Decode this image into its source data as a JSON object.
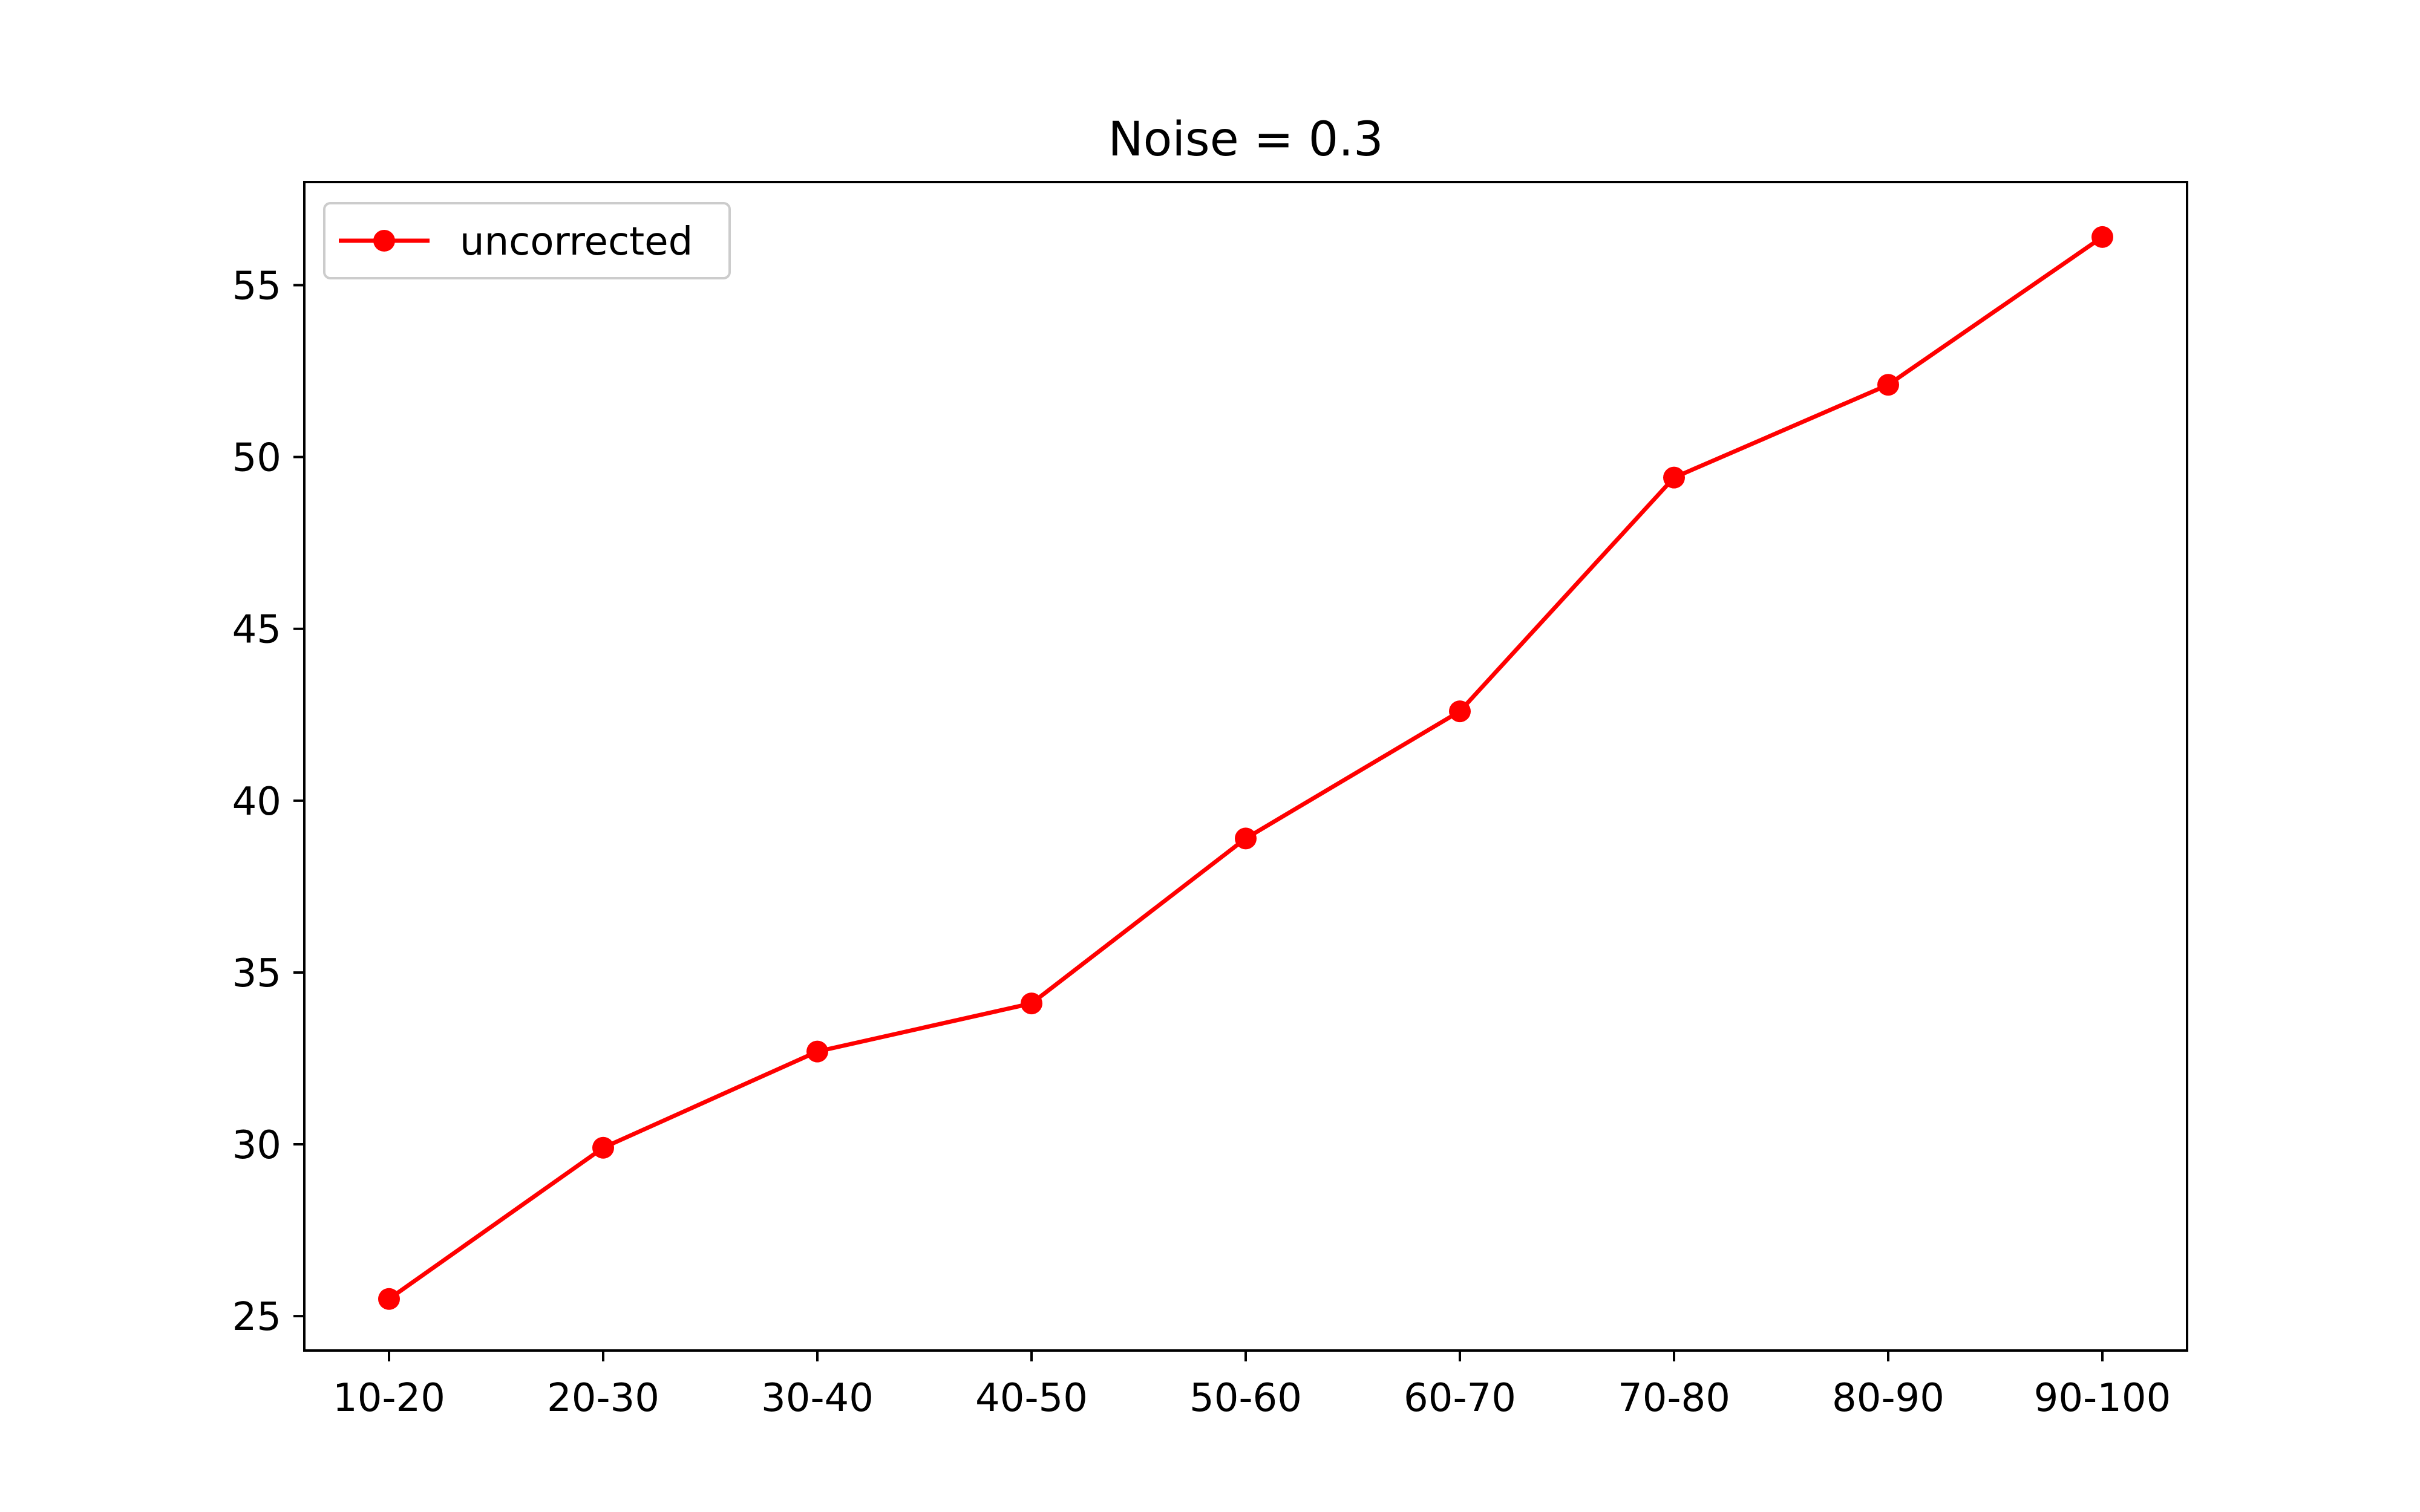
{
  "chart_data": {
    "type": "line",
    "title": "Noise = 0.3",
    "xlabel": "",
    "ylabel": "",
    "categories": [
      "10-20",
      "20-30",
      "30-40",
      "40-50",
      "50-60",
      "60-70",
      "70-80",
      "80-90",
      "90-100"
    ],
    "series": [
      {
        "name": "uncorrected",
        "color": "#ff0000",
        "marker": "circle",
        "values": [
          25.5,
          29.9,
          32.7,
          34.1,
          38.9,
          42.6,
          49.4,
          52.1,
          56.4
        ]
      }
    ],
    "ylim": [
      24,
      58
    ],
    "yticks": [
      25,
      30,
      35,
      40,
      45,
      50,
      55
    ],
    "grid": false,
    "legend": "upper-left"
  }
}
